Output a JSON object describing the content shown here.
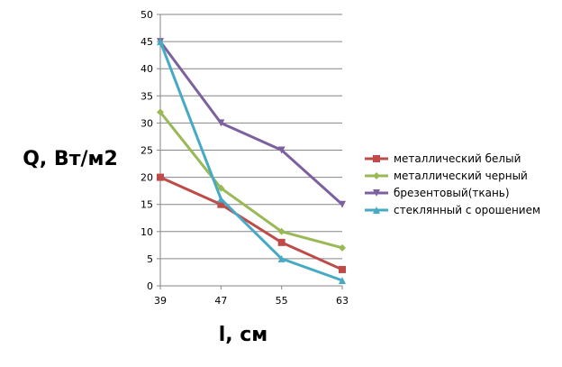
{
  "chart_data": {
    "type": "line",
    "x": [
      39,
      47,
      55,
      63
    ],
    "ylim": [
      0,
      50
    ],
    "ytick_step": 5,
    "ylabel": "Q, Вт/м2",
    "xlabel": "l, см",
    "grid": "horizontal",
    "legend_position": "right",
    "series": [
      {
        "name": "металлический белый",
        "values": [
          20,
          15,
          8,
          3
        ],
        "color": "#be4b48",
        "marker": "square"
      },
      {
        "name": "металлический черный",
        "values": [
          32,
          18,
          10,
          7
        ],
        "color": "#98b954",
        "marker": "diamond"
      },
      {
        "name": "брезентовый(ткань)",
        "values": [
          45,
          30,
          25,
          15
        ],
        "color": "#7d60a0",
        "marker": "triangle-down"
      },
      {
        "name": "стеклянный с орошением",
        "values": [
          45,
          16,
          5,
          1
        ],
        "color": "#46aac5",
        "marker": "triangle-up"
      }
    ]
  }
}
